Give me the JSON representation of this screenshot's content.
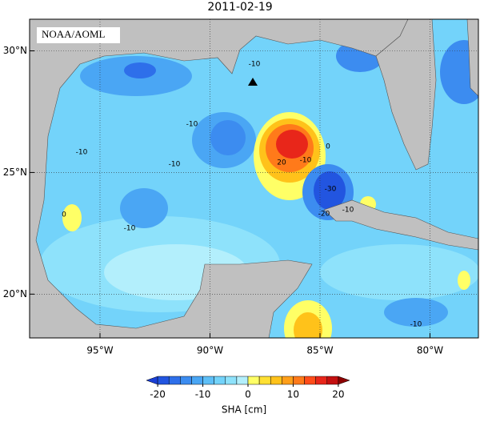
{
  "map": {
    "title": "2011-02-19",
    "credit": "NOAA/AOML",
    "lon_lim": [
      -98.2,
      -77.8
    ],
    "lat_lim": [
      18.2,
      31.3
    ],
    "lon_ticks": [
      {
        "value": -95,
        "label": "95°W"
      },
      {
        "value": -90,
        "label": "90°W"
      },
      {
        "value": -85,
        "label": "85°W"
      },
      {
        "value": -80,
        "label": "80°W"
      }
    ],
    "lat_ticks": [
      {
        "value": 20,
        "label": "20°N"
      },
      {
        "value": 25,
        "label": "25°N"
      },
      {
        "value": 30,
        "label": "30°N"
      }
    ],
    "grid": true,
    "contour_labels": [
      -10,
      -10,
      -10,
      -10,
      20,
      -10,
      0,
      -30,
      -20,
      -10,
      0,
      -10,
      -10
    ],
    "colorbar": {
      "label": "SHA [cm]",
      "lim": [
        -22.5,
        22.5
      ],
      "ticks": [
        -20,
        -10,
        0,
        10,
        20
      ],
      "colors": [
        "#1a3fd6",
        "#2255e0",
        "#2e6fea",
        "#3c8cf0",
        "#4aa6f4",
        "#5ebff7",
        "#73d3fa",
        "#8ee2fb",
        "#b3effc",
        "#ffff66",
        "#ffe033",
        "#ffc21a",
        "#ff9f1a",
        "#ff7a1a",
        "#ff4c1a",
        "#e8261a",
        "#c41010",
        "#8c0000"
      ]
    }
  }
}
